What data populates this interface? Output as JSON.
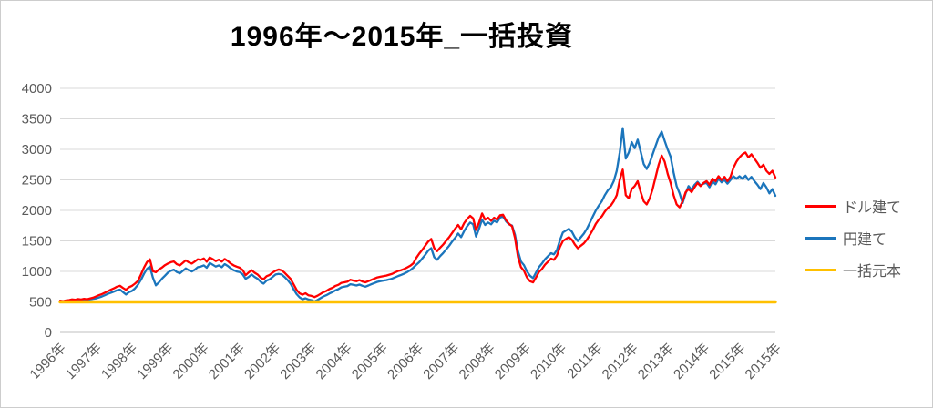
{
  "title": "1996年～2015年_一括投資",
  "legend": {
    "position": "right",
    "entries": [
      {
        "label": "ドル建て",
        "color": "#FF0000"
      },
      {
        "label": "円建て",
        "color": "#1B75BC"
      },
      {
        "label": "一括元本",
        "color": "#FFC000"
      }
    ]
  },
  "axis_style": {
    "text_color": "#595959",
    "gridline_color": "#D9D9D9",
    "axis_line_color": "#BFBFBF"
  },
  "chart_data": {
    "type": "line",
    "title": "1996年～2015年_一括投資",
    "xlabel": "",
    "ylabel": "",
    "grid": true,
    "legend_position": "right",
    "y_axis": {
      "min": 0,
      "max": 4000,
      "tick_interval": 500,
      "ticks": [
        0,
        500,
        1000,
        1500,
        2000,
        2500,
        3000,
        3500,
        4000
      ]
    },
    "x_axis": {
      "labels": [
        "1996年",
        "1997年",
        "1998年",
        "1999年",
        "2000年",
        "2001年",
        "2002年",
        "2003年",
        "2004年",
        "2005年",
        "2006年",
        "2007年",
        "2008年",
        "2009年",
        "2010年",
        "2011年",
        "2012年",
        "2013年",
        "2014年",
        "2015年",
        "2015年"
      ],
      "start_year": 1996,
      "points_per_year": 12
    },
    "series": [
      {
        "name": "ドル建て",
        "color": "#FF0000",
        "width": 2.3,
        "values": [
          520,
          514,
          524,
          530,
          541,
          534,
          546,
          539,
          551,
          544,
          556,
          569,
          589,
          611,
          629,
          652,
          678,
          701,
          722,
          749,
          764,
          728,
          698,
          741,
          762,
          799,
          843,
          948,
          1061,
          1152,
          1199,
          1003,
          987,
          1032,
          1061,
          1102,
          1129,
          1151,
          1163,
          1118,
          1099,
          1141,
          1181,
          1148,
          1128,
          1161,
          1199,
          1188,
          1212,
          1158,
          1228,
          1201,
          1168,
          1192,
          1159,
          1203,
          1171,
          1128,
          1099,
          1078,
          1059,
          1021,
          938,
          982,
          1019,
          978,
          948,
          897,
          871,
          921,
          942,
          981,
          1012,
          1031,
          1018,
          979,
          929,
          878,
          789,
          698,
          641,
          618,
          642,
          608,
          598,
          579,
          601,
          632,
          659,
          681,
          712,
          731,
          762,
          781,
          812,
          821,
          831,
          862,
          849,
          839,
          856,
          834,
          821,
          841,
          861,
          882,
          901,
          912,
          921,
          931,
          946,
          961,
          986,
          1008,
          1021,
          1041,
          1066,
          1092,
          1131,
          1221,
          1291,
          1352,
          1421,
          1489,
          1531,
          1379,
          1331,
          1389,
          1441,
          1501,
          1561,
          1631,
          1701,
          1761,
          1689,
          1791,
          1859,
          1911,
          1869,
          1679,
          1801,
          1949,
          1849,
          1879,
          1829,
          1879,
          1849,
          1919,
          1929,
          1839,
          1779,
          1739,
          1549,
          1239,
          1069,
          1009,
          899,
          839,
          819,
          899,
          989,
          1039,
          1109,
          1159,
          1209,
          1189,
          1259,
          1399,
          1499,
          1531,
          1561,
          1519,
          1441,
          1379,
          1421,
          1459,
          1521,
          1599,
          1681,
          1779,
          1849,
          1901,
          1979,
          2041,
          2079,
          2149,
          2249,
          2499,
          2669,
          2249,
          2199,
          2349,
          2399,
          2479,
          2299,
          2149,
          2099,
          2199,
          2349,
          2549,
          2749,
          2899,
          2799,
          2599,
          2449,
          2249,
          2099,
          2049,
          2149,
          2299,
          2349,
          2299,
          2379,
          2449,
          2399,
          2449,
          2479,
          2419,
          2519,
          2479,
          2559,
          2499,
          2549,
          2479,
          2549,
          2699,
          2799,
          2869,
          2919,
          2949,
          2869,
          2919,
          2849,
          2779,
          2699,
          2749,
          2649,
          2599,
          2649,
          2539
        ]
      },
      {
        "name": "円建て",
        "color": "#1B75BC",
        "width": 2.3,
        "values": [
          509,
          504,
          512,
          518,
          527,
          521,
          531,
          525,
          536,
          529,
          541,
          551,
          556,
          571,
          589,
          611,
          634,
          651,
          669,
          691,
          701,
          661,
          621,
          659,
          679,
          721,
          781,
          861,
          959,
          1041,
          1079,
          899,
          771,
          819,
          879,
          929,
          979,
          1011,
          1029,
          989,
          969,
          1009,
          1049,
          1019,
          999,
          1029,
          1069,
          1079,
          1099,
          1059,
          1139,
          1109,
          1079,
          1099,
          1069,
          1119,
          1089,
          1049,
          1019,
          999,
          989,
          949,
          879,
          909,
          949,
          909,
          879,
          829,
          799,
          849,
          869,
          909,
          949,
          959,
          949,
          909,
          859,
          799,
          709,
          629,
          574,
          544,
          559,
          539,
          529,
          509,
          531,
          561,
          589,
          611,
          639,
          661,
          689,
          711,
          739,
          749,
          759,
          789,
          779,
          769,
          784,
          764,
          749,
          769,
          789,
          809,
          829,
          839,
          849,
          857,
          869,
          884,
          904,
          926,
          944,
          964,
          989,
          1019,
          1059,
          1109,
          1151,
          1211,
          1271,
          1341,
          1381,
          1231,
          1191,
          1251,
          1301,
          1361,
          1421,
          1491,
          1551,
          1621,
          1561,
          1661,
          1741,
          1801,
          1771,
          1571,
          1701,
          1851,
          1761,
          1801,
          1771,
          1831,
          1801,
          1881,
          1901,
          1821,
          1771,
          1751,
          1601,
          1331,
          1161,
          1101,
          999,
          929,
          889,
          979,
          1069,
          1129,
          1199,
          1249,
          1299,
          1279,
          1349,
          1509,
          1639,
          1669,
          1699,
          1649,
          1559,
          1499,
          1559,
          1619,
          1699,
          1799,
          1899,
          1999,
          2079,
          2149,
          2249,
          2329,
          2379,
          2479,
          2649,
          2949,
          3349,
          2849,
          2949,
          3119,
          3019,
          3159,
          2959,
          2759,
          2679,
          2779,
          2919,
          3059,
          3199,
          3289,
          3139,
          2999,
          2879,
          2619,
          2399,
          2279,
          2119,
          2279,
          2399,
          2339,
          2419,
          2469,
          2409,
          2439,
          2449,
          2379,
          2479,
          2429,
          2519,
          2459,
          2499,
          2439,
          2499,
          2559,
          2519,
          2559,
          2519,
          2569,
          2499,
          2549,
          2479,
          2419,
          2349,
          2449,
          2379,
          2279,
          2349,
          2239
        ]
      },
      {
        "name": "一括元本",
        "color": "#FFC000",
        "width": 3.4,
        "constant": true,
        "values": [
          500,
          500
        ]
      }
    ]
  }
}
